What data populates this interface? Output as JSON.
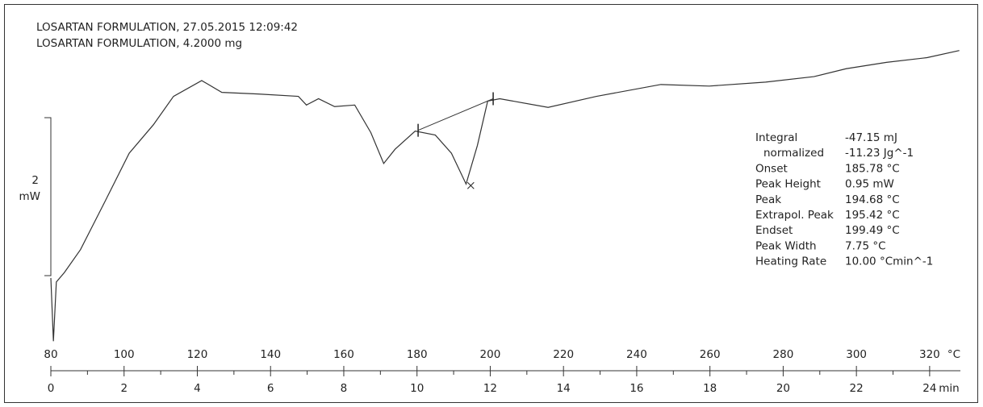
{
  "header": [
    "LOSARTAN FORMULATION, 27.05.2015 12:09:42",
    "LOSARTAN FORMULATION, 4.2000 mg"
  ],
  "chart_data": {
    "type": "line",
    "x": [
      80,
      80.7,
      81.5,
      83.7,
      88.1,
      94.8,
      101.4,
      108.0,
      113.5,
      121.2,
      126.7,
      136.6,
      147.6,
      149.8,
      153.1,
      157.5,
      163.0,
      167.4,
      170.9,
      174.0,
      179.5,
      185.0,
      189.4,
      193.4,
      196.5,
      199.3,
      202.6,
      215.8,
      229.0,
      246.6,
      259.8,
      275.2,
      288.4,
      297.2,
      308.2,
      319.3,
      328.1
    ],
    "series": [
      {
        "color": "#333333",
        "values": [
          -0.03,
          -0.83,
          -0.08,
          0.04,
          0.33,
          0.94,
          1.55,
          1.91,
          2.27,
          2.47,
          2.32,
          2.3,
          2.27,
          2.16,
          2.24,
          2.14,
          2.16,
          1.81,
          1.42,
          1.6,
          1.83,
          1.78,
          1.55,
          1.16,
          1.65,
          2.21,
          2.24,
          2.13,
          2.27,
          2.42,
          2.4,
          2.45,
          2.52,
          2.62,
          2.7,
          2.76,
          2.85
        ]
      }
    ],
    "baseline": {
      "x": [
        180.3,
        200.8
      ],
      "values": [
        1.84,
        2.24
      ]
    },
    "peak": {
      "x": 194.68,
      "value": 1.14
    },
    "xlim": [
      80,
      328.4
    ],
    "xticks": [
      80,
      100,
      120,
      140,
      160,
      180,
      200,
      220,
      240,
      260,
      280,
      300,
      320
    ],
    "x_unit": "°C",
    "x2lim": [
      0,
      24.84
    ],
    "x2ticks": [
      0,
      2,
      4,
      6,
      8,
      10,
      12,
      14,
      16,
      18,
      20,
      22,
      24
    ],
    "x2_unit": "min",
    "ylim": [
      -0.9,
      3.4
    ],
    "scale_bar": {
      "value": 2,
      "unit": "mW"
    }
  },
  "results": [
    {
      "label": "Integral",
      "value": "-47.15 mJ"
    },
    {
      "label": "normalized",
      "value": "-11.23 Jg^-1"
    },
    {
      "label": "Onset",
      "value": "185.78 °C"
    },
    {
      "label": "Peak Height",
      "value": "0.95 mW"
    },
    {
      "label": "Peak",
      "value": "194.68 °C"
    },
    {
      "label": "Extrapol. Peak",
      "value": "195.42 °C"
    },
    {
      "label": "Endset",
      "value": "199.49 °C"
    },
    {
      "label": "Peak Width",
      "value": "7.75 °C"
    },
    {
      "label": "Heating Rate",
      "value": "10.00 °Cmin^-1"
    }
  ]
}
